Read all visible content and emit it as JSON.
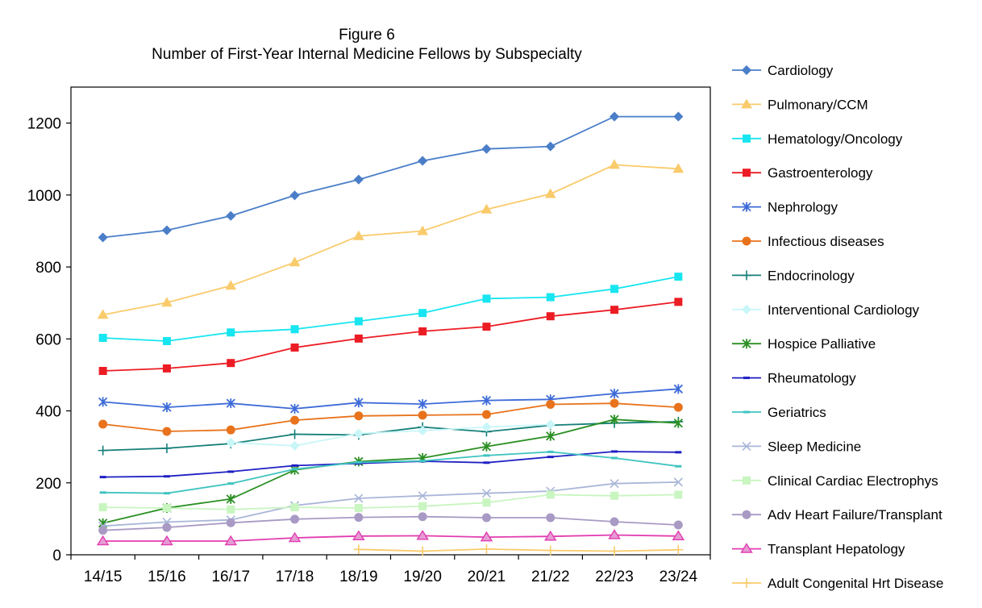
{
  "chart_data": {
    "type": "line",
    "title": "Figure 6",
    "subtitle": "Number of First-Year Internal Medicine Fellows by Subspecialty",
    "xlabel": "",
    "ylabel": "",
    "categories": [
      "14/15",
      "15/16",
      "16/17",
      "17/18",
      "18/19",
      "19/20",
      "20/21",
      "21/22",
      "22/23",
      "23/24"
    ],
    "ylim": [
      0,
      1300
    ],
    "yticks": [
      "0",
      "200",
      "400",
      "600",
      "800",
      "1000",
      "1200"
    ],
    "grid": false,
    "legend_position": "right",
    "series": [
      {
        "name": "Cardiology",
        "color": "#4A7EC8",
        "marker": "diamond",
        "values": [
          882,
          902,
          942,
          999,
          1043,
          1095,
          1128,
          1135,
          1218,
          1218
        ]
      },
      {
        "name": "Pulmonary/CCM",
        "color": "#F9CB6C",
        "marker": "triangle",
        "values": [
          667,
          701,
          748,
          813,
          886,
          900,
          960,
          1003,
          1084,
          1073
        ]
      },
      {
        "name": "Hematology/Oncology",
        "color": "#17E5F0",
        "marker": "square",
        "values": [
          603,
          594,
          618,
          627,
          649,
          672,
          712,
          716,
          739,
          773
        ]
      },
      {
        "name": "Gastroenterology",
        "color": "#EC1C24",
        "marker": "square",
        "values": [
          511,
          518,
          533,
          576,
          601,
          621,
          634,
          663,
          681,
          703
        ]
      },
      {
        "name": "Nephrology",
        "color": "#3D6BD8",
        "marker": "asterisk",
        "values": [
          425,
          410,
          421,
          406,
          423,
          419,
          429,
          432,
          448,
          461
        ]
      },
      {
        "name": "Infectious diseases",
        "color": "#E8731C",
        "marker": "circle",
        "values": [
          363,
          343,
          347,
          374,
          386,
          388,
          390,
          418,
          421,
          410
        ]
      },
      {
        "name": "Endocrinology",
        "color": "#157F78",
        "marker": "plus",
        "values": [
          290,
          296,
          309,
          335,
          333,
          355,
          342,
          360,
          366,
          370
        ]
      },
      {
        "name": "Interventional Cardiology",
        "color": "#C9F6F8",
        "marker": "diamond",
        "values": [
          null,
          null,
          312,
          303,
          337,
          345,
          355,
          362,
          null,
          null
        ]
      },
      {
        "name": "Hospice Palliative",
        "color": "#2A8F22",
        "marker": "asterisk",
        "values": [
          88,
          130,
          155,
          236,
          259,
          269,
          301,
          330,
          376,
          366
        ]
      },
      {
        "name": "Rheumatology",
        "color": "#1F1FC4",
        "marker": "dash",
        "values": [
          216,
          218,
          231,
          248,
          254,
          260,
          256,
          272,
          287,
          285
        ]
      },
      {
        "name": "Geriatrics",
        "color": "#3FC4C0",
        "marker": "dash",
        "values": [
          173,
          171,
          198,
          238,
          257,
          261,
          276,
          286,
          269,
          246
        ]
      },
      {
        "name": "Sleep Medicine",
        "color": "#A9B6D8",
        "marker": "x",
        "values": [
          80,
          91,
          97,
          137,
          157,
          164,
          171,
          177,
          198,
          202
        ]
      },
      {
        "name": "Clinical Cardiac Electrophys",
        "color": "#C8F5C0",
        "marker": "square",
        "values": [
          132,
          130,
          126,
          132,
          130,
          135,
          145,
          167,
          164,
          167
        ]
      },
      {
        "name": "Adv Heart Failure/Transplant",
        "color": "#A89AC4",
        "marker": "circle",
        "values": [
          68,
          76,
          89,
          99,
          104,
          106,
          103,
          103,
          92,
          83
        ]
      },
      {
        "name": "Transplant Hepatology",
        "color": "#E23CB0",
        "marker": "triangle-pink",
        "values": [
          38,
          38,
          38,
          47,
          52,
          53,
          49,
          51,
          55,
          52
        ]
      },
      {
        "name": "Adult Congenital Hrt Disease",
        "color": "#F9CB6C",
        "marker": "plus",
        "values": [
          null,
          null,
          null,
          null,
          15,
          10,
          16,
          12,
          10,
          14
        ]
      }
    ]
  }
}
